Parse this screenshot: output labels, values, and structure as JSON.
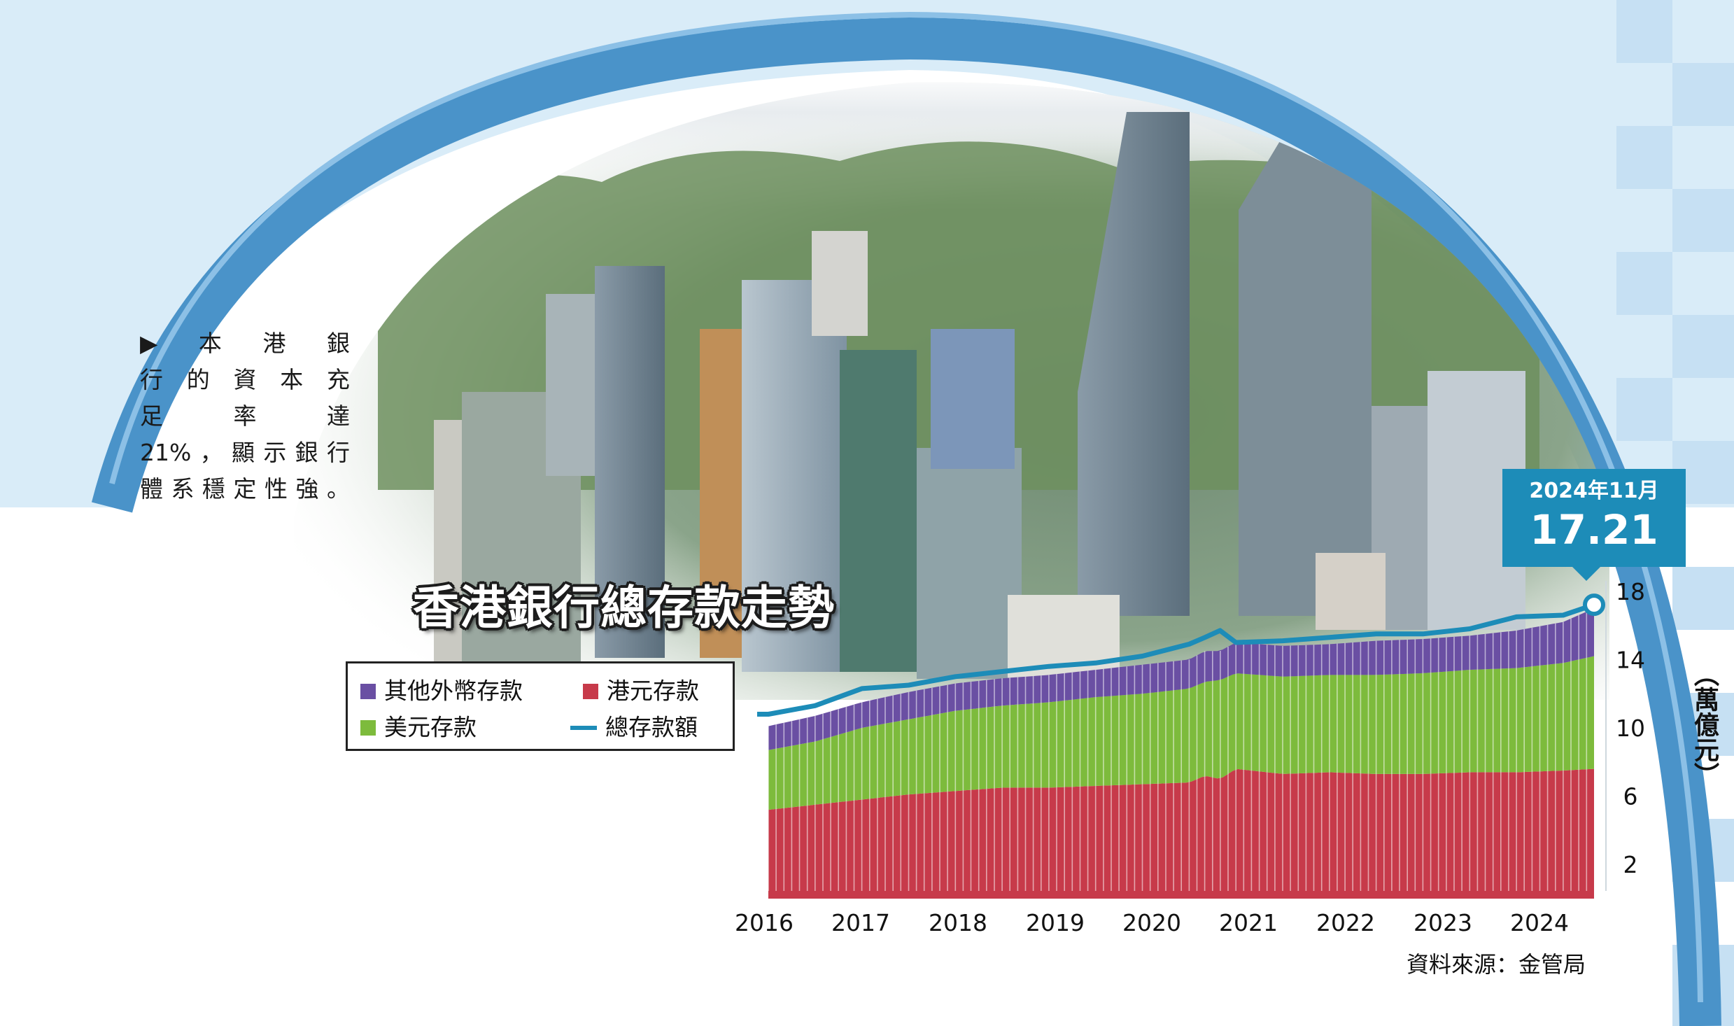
{
  "caption": {
    "lines": [
      "▶本港銀",
      "行的資本充",
      "足率達",
      "21%，顯示銀行",
      "體系穩定性強。"
    ]
  },
  "colors": {
    "hkd": "#c73a4a",
    "usd": "#7dbb3c",
    "other": "#6a4fa3",
    "total": "#1d8cb8",
    "frame_blue": "#4a93c9",
    "sky": "#d9ecf8"
  },
  "callout": {
    "date": "2024年11月",
    "value": "17.21"
  },
  "unit": "（萬億元）",
  "source": "資料來源：金管局",
  "legend": {
    "other": "其他外幣存款",
    "hkd": "港元存款",
    "usd": "美元存款",
    "total": "總存款額"
  },
  "chart_data": {
    "type": "area",
    "title": "香港銀行總存款走勢",
    "x_ticks": [
      "2016",
      "2017",
      "2018",
      "2019",
      "2020",
      "2021",
      "2022",
      "2023",
      "2024"
    ],
    "y_ticks": [
      2,
      6,
      10,
      14,
      18
    ],
    "ylim": [
      0,
      20
    ],
    "unit": "萬億元",
    "x": [
      2016.0,
      2016.5,
      2017.0,
      2017.5,
      2018.0,
      2018.5,
      2019.0,
      2019.5,
      2020.0,
      2020.5,
      2020.67,
      2020.83,
      2021.0,
      2021.5,
      2022.0,
      2022.5,
      2023.0,
      2023.5,
      2024.0,
      2024.5,
      2024.83
    ],
    "series": [
      {
        "name": "港元存款",
        "values": [
          5.2,
          5.5,
          5.8,
          6.1,
          6.3,
          6.5,
          6.5,
          6.6,
          6.7,
          6.8,
          7.2,
          7.0,
          7.6,
          7.3,
          7.4,
          7.3,
          7.3,
          7.4,
          7.4,
          7.5,
          7.6
        ]
      },
      {
        "name": "美元存款",
        "values": [
          3.5,
          3.7,
          4.2,
          4.4,
          4.7,
          4.8,
          5.0,
          5.2,
          5.3,
          5.5,
          5.5,
          5.8,
          5.6,
          5.7,
          5.7,
          5.8,
          5.9,
          6.0,
          6.1,
          6.3,
          6.6
        ]
      },
      {
        "name": "其他外幣存款",
        "values": [
          1.4,
          1.5,
          1.5,
          1.6,
          1.6,
          1.6,
          1.6,
          1.6,
          1.7,
          1.7,
          1.8,
          1.7,
          1.8,
          1.8,
          1.8,
          2.0,
          2.0,
          2.0,
          2.2,
          2.4,
          2.8
        ]
      },
      {
        "name": "總存款額",
        "values": [
          10.8,
          11.3,
          12.3,
          12.5,
          13.0,
          13.3,
          13.6,
          13.8,
          14.2,
          14.9,
          15.3,
          15.7,
          15.0,
          15.1,
          15.3,
          15.5,
          15.5,
          15.8,
          16.5,
          16.6,
          17.21
        ]
      }
    ]
  }
}
